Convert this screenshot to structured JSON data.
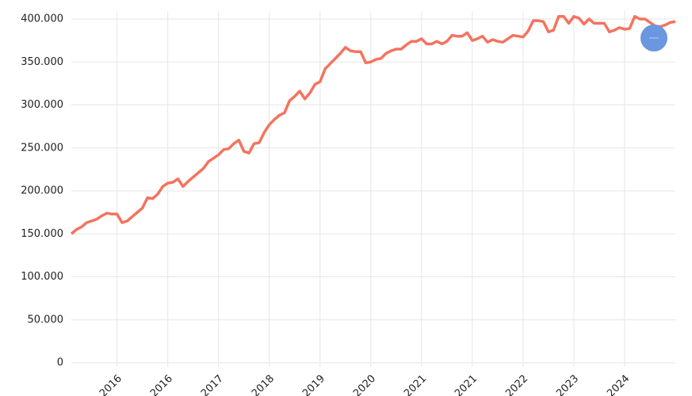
{
  "chart_data": {
    "type": "line",
    "color": "#f4735f",
    "grid": true,
    "categories": [
      null,
      null,
      null,
      null,
      null,
      null,
      null,
      null,
      null,
      "2016",
      null,
      null,
      null,
      null,
      null,
      null,
      null,
      null,
      null,
      "2016",
      null,
      null,
      null,
      null,
      null,
      null,
      null,
      null,
      null,
      "2017",
      null,
      null,
      null,
      null,
      null,
      null,
      null,
      null,
      null,
      "2018",
      null,
      null,
      null,
      null,
      null,
      null,
      null,
      null,
      null,
      "2019",
      null,
      null,
      null,
      null,
      null,
      null,
      null,
      null,
      null,
      "2020",
      null,
      null,
      null,
      null,
      null,
      null,
      null,
      null,
      null,
      "2021",
      null,
      null,
      null,
      null,
      null,
      null,
      null,
      null,
      null,
      "2021",
      null,
      null,
      null,
      null,
      null,
      null,
      null,
      null,
      null,
      "2022",
      null,
      null,
      null,
      null,
      null,
      null,
      null,
      null,
      null,
      "2023",
      null,
      null,
      null,
      null,
      null,
      null,
      null,
      null,
      null,
      "2024",
      null,
      null,
      null,
      null,
      null,
      null,
      null,
      null,
      null,
      null
    ],
    "values": [
      150000,
      155000,
      158000,
      163000,
      165000,
      167000,
      171000,
      174000,
      173000,
      173000,
      163000,
      165000,
      170000,
      175000,
      180000,
      192000,
      191000,
      196000,
      205000,
      209000,
      210000,
      214000,
      205000,
      211000,
      216000,
      221000,
      226000,
      234000,
      238000,
      242000,
      248000,
      249000,
      255000,
      259000,
      246000,
      244000,
      255000,
      256000,
      268000,
      277000,
      283000,
      288000,
      291000,
      305000,
      310000,
      316000,
      307000,
      314000,
      324000,
      327000,
      342000,
      348000,
      354000,
      360000,
      367000,
      363000,
      362000,
      362000,
      349000,
      350000,
      353000,
      354000,
      360000,
      363000,
      365000,
      365000,
      370000,
      374000,
      374000,
      377000,
      371000,
      371000,
      374000,
      371000,
      374000,
      381000,
      380000,
      380000,
      384000,
      375000,
      377000,
      380000,
      373000,
      376000,
      374000,
      373000,
      377000,
      381000,
      380000,
      379000,
      386000,
      398000,
      398000,
      397000,
      385000,
      387000,
      403000,
      403000,
      395000,
      403000,
      401000,
      394000,
      400000,
      395000,
      395000,
      395000,
      385000,
      387000,
      390000,
      388000,
      389000,
      403000,
      400000,
      400000,
      396000,
      392000,
      391000,
      393000,
      396000,
      397000
    ],
    "ylim": [
      0,
      400000
    ],
    "yticks": [
      0,
      {
        "value": 50000,
        "label": "50.000"
      },
      {
        "value": 100000,
        "label": "100.000"
      },
      {
        "value": 150000,
        "label": "150.000"
      },
      {
        "value": 200000,
        "label": "200.000"
      },
      {
        "value": 250000,
        "label": "250.000"
      },
      {
        "value": 300000,
        "label": "300.000"
      },
      {
        "value": 350000,
        "label": "350.000"
      },
      {
        "value": 400000,
        "label": "400.000"
      }
    ]
  }
}
